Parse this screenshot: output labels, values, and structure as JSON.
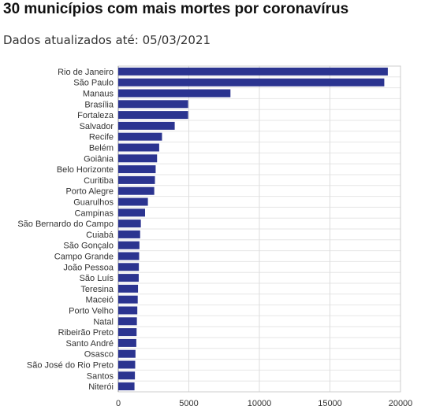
{
  "title": "30 municípios com mais mortes por coronavírus",
  "subtitle": "Dados atualizados até: 05/03/2021",
  "chart_data": {
    "type": "bar",
    "orientation": "horizontal",
    "title": "30 municípios com mais mortes por coronavírus",
    "subtitle": "Dados atualizados até: 05/03/2021",
    "xlabel": "",
    "ylabel": "",
    "xlim": [
      0,
      20000
    ],
    "x_ticks": [
      0,
      5000,
      10000,
      15000,
      20000
    ],
    "grid": true,
    "bar_color": "#2b3490",
    "categories": [
      "Rio de Janeiro",
      "São Paulo",
      "Manaus",
      "Brasília",
      "Fortaleza",
      "Salvador",
      "Recife",
      "Belém",
      "Goiânia",
      "Belo Horizonte",
      "Curitiba",
      "Porto Alegre",
      "Guarulhos",
      "Campinas",
      "São Bernardo do Campo",
      "Cuiabá",
      "São Gonçalo",
      "Campo Grande",
      "João Pessoa",
      "São Luís",
      "Teresina",
      "Maceió",
      "Porto Velho",
      "Natal",
      "Ribeirão Preto",
      "Santo André",
      "Osasco",
      "São José do Rio Preto",
      "Santos",
      "Niterói"
    ],
    "values": [
      19100,
      18850,
      7950,
      4950,
      4950,
      4000,
      3100,
      2900,
      2750,
      2650,
      2600,
      2550,
      2100,
      1900,
      1600,
      1550,
      1500,
      1480,
      1460,
      1450,
      1400,
      1380,
      1350,
      1320,
      1300,
      1280,
      1220,
      1200,
      1180,
      1150
    ]
  }
}
